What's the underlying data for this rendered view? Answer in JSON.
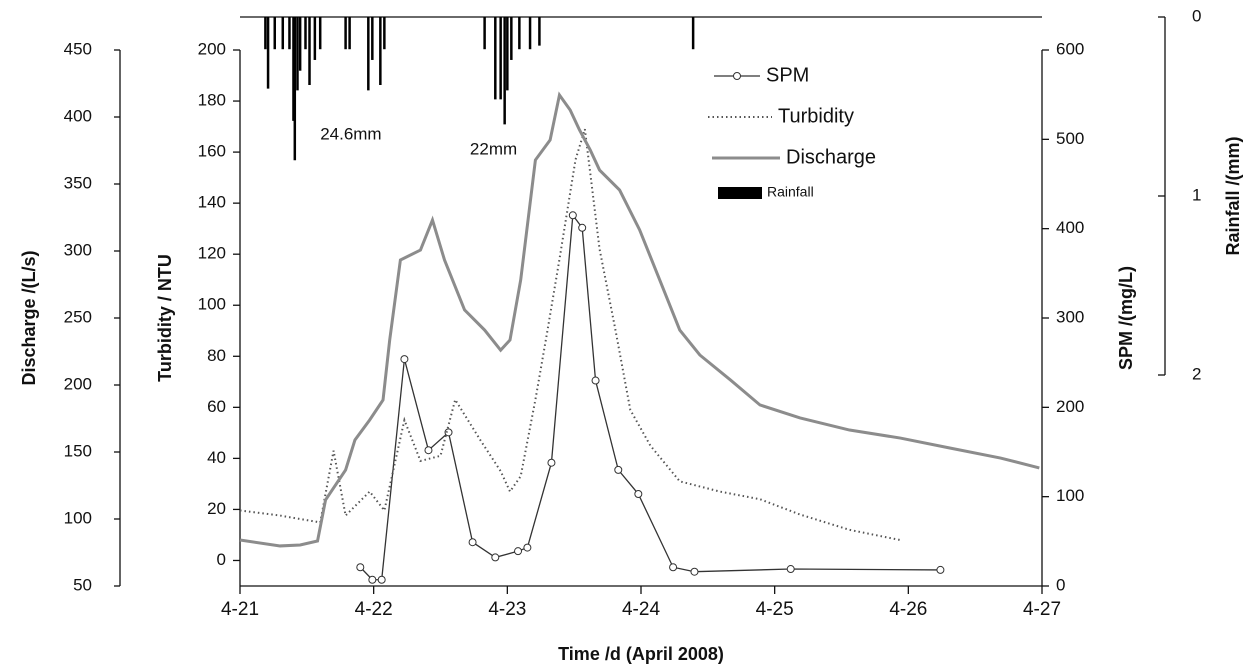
{
  "chart_data": {
    "type": "line",
    "xlabel": "Time /d (April 2008)",
    "ylabel": "Discharge /(L/s)",
    "y2label": "Turbidity / NTU",
    "y3label": "SPM /(mg/L)",
    "y4label": "Rainfall /(mm)",
    "xlim": [
      21,
      27
    ],
    "xticks": [
      {
        "value": 21,
        "label": "4-21"
      },
      {
        "value": 22,
        "label": "4-22"
      },
      {
        "value": 23,
        "label": "4-23"
      },
      {
        "value": 24,
        "label": "4-24"
      },
      {
        "value": 25,
        "label": "4-25"
      },
      {
        "value": 26,
        "label": "4-26"
      },
      {
        "value": 27,
        "label": "4-27"
      }
    ],
    "ylim": [
      50,
      450
    ],
    "yticks": [
      50,
      100,
      150,
      200,
      250,
      300,
      350,
      400,
      450
    ],
    "y2lim": [
      -10,
      200
    ],
    "y2ticks": [
      0,
      20,
      40,
      60,
      80,
      100,
      120,
      140,
      160,
      180,
      200
    ],
    "y3lim": [
      0,
      600
    ],
    "y3ticks": [
      0,
      100,
      200,
      300,
      400,
      500,
      600
    ],
    "y4lim": [
      0,
      2
    ],
    "y4ticks": [
      0,
      1,
      2
    ],
    "y4inverted": true,
    "annotations": [
      {
        "text": "24.6mm",
        "x": 21.6,
        "y": 135
      },
      {
        "text": "22mm",
        "x": 22.72,
        "y": 150
      }
    ],
    "series": [
      {
        "name": "SPM",
        "axis": "y3",
        "color": "#333333",
        "style": "solid",
        "marker": "circle",
        "x": [
          21.9,
          21.99,
          22.06,
          22.23,
          22.41,
          22.56,
          22.74,
          22.91,
          23.08,
          23.15,
          23.33,
          23.49,
          23.56,
          23.66,
          23.83,
          23.98,
          24.24,
          24.4,
          25.12,
          26.24
        ],
        "values": [
          21,
          7,
          7,
          254,
          152,
          172,
          49,
          32,
          39,
          43,
          138,
          415,
          401,
          230,
          130,
          103,
          21,
          16,
          19,
          18
        ]
      },
      {
        "name": "Turbidity",
        "axis": "y2",
        "color": "#555555",
        "style": "dotted",
        "x": [
          21,
          21.3,
          21.6,
          21.7,
          21.79,
          21.97,
          22.08,
          22.23,
          22.35,
          22.5,
          22.61,
          22.8,
          22.95,
          23.02,
          23.1,
          23.21,
          23.3,
          23.39,
          23.51,
          23.58,
          23.69,
          23.81,
          23.92,
          24.07,
          24.29,
          24.59,
          24.89,
          25.19,
          25.56,
          25.94
        ],
        "values": [
          19.6,
          17.6,
          14.9,
          43,
          17.6,
          27,
          19.6,
          55,
          39,
          41,
          63,
          47,
          35,
          27,
          33,
          63,
          90,
          118,
          157,
          169,
          122,
          90,
          59,
          45,
          31,
          27,
          24,
          18,
          12,
          8
        ]
      },
      {
        "name": "Discharge",
        "axis": "y",
        "color": "#8c8c8c",
        "style": "solid",
        "x": [
          21,
          21.3,
          21.45,
          21.58,
          21.64,
          21.79,
          21.86,
          21.97,
          22.07,
          22.12,
          22.2,
          22.35,
          22.44,
          22.53,
          22.68,
          22.83,
          22.95,
          23.02,
          23.1,
          23.21,
          23.32,
          23.39,
          23.47,
          23.54,
          23.62,
          23.69,
          23.84,
          23.99,
          24.14,
          24.29,
          24.44,
          24.67,
          24.89,
          25.19,
          25.56,
          25.94,
          26.31,
          26.69,
          26.98
        ],
        "values": [
          84.3,
          79.9,
          80.6,
          83.6,
          114.2,
          136.6,
          159,
          173.9,
          188.8,
          233.6,
          293.3,
          300.7,
          323.1,
          293.3,
          256,
          241,
          226,
          233.6,
          278.4,
          367.9,
          382.8,
          416.4,
          405.2,
          390.3,
          375.4,
          360.4,
          345.5,
          315.7,
          278.4,
          241,
          222.4,
          203.7,
          185.1,
          175.4,
          166.4,
          160.4,
          153,
          145.5,
          138.1
        ]
      },
      {
        "name": "Rainfall",
        "axis": "y4",
        "color": "#000000",
        "style": "bar",
        "x": [
          21.19,
          21.21,
          21.26,
          21.32,
          21.37,
          21.4,
          21.41,
          21.43,
          21.45,
          21.49,
          21.52,
          21.56,
          21.6,
          21.79,
          21.82,
          21.96,
          21.99,
          22.05,
          22.08,
          22.83,
          22.91,
          22.95,
          22.98,
          23.0,
          23.03,
          23.09,
          23.17,
          23.24,
          24.39
        ],
        "values": [
          0.18,
          0.4,
          0.18,
          0.18,
          0.18,
          0.58,
          0.8,
          0.41,
          0.3,
          0.18,
          0.38,
          0.24,
          0.18,
          0.18,
          0.18,
          0.41,
          0.24,
          0.38,
          0.18,
          0.18,
          0.46,
          0.46,
          0.6,
          0.41,
          0.24,
          0.18,
          0.18,
          0.16,
          0.18
        ]
      }
    ]
  }
}
